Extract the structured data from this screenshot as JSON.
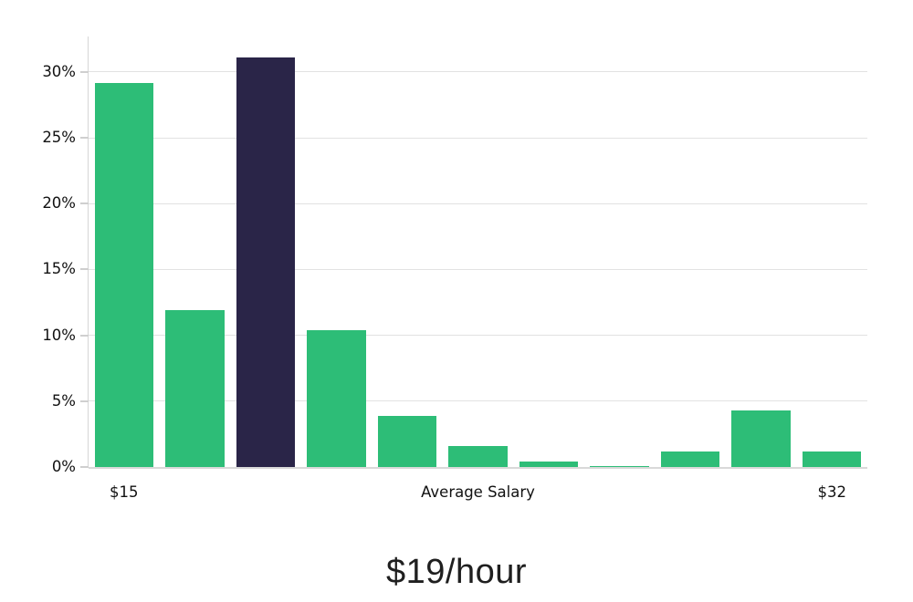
{
  "chart_data": {
    "type": "bar",
    "title": "$19/hour",
    "values": [
      29.2,
      11.9,
      31.1,
      10.4,
      3.9,
      1.6,
      0.45,
      0.1,
      1.15,
      4.3,
      1.15
    ],
    "highlighted_bar_index": 2,
    "y_ticks": [
      {
        "label": "0%",
        "value": 0
      },
      {
        "label": "5%",
        "value": 5
      },
      {
        "label": "10%",
        "value": 10
      },
      {
        "label": "15%",
        "value": 15
      },
      {
        "label": "20%",
        "value": 20
      },
      {
        "label": "25%",
        "value": 25
      },
      {
        "label": "30%",
        "value": 30
      }
    ],
    "x_tick_labels": [
      {
        "label": "$15",
        "bar_index": 0
      },
      {
        "label": "Average Salary",
        "bar_index": 5
      },
      {
        "label": "$32",
        "bar_index": 10
      }
    ],
    "ylim": [
      0,
      32.7
    ],
    "grid": "horizontal",
    "legend": "none",
    "colors": {
      "bar": "#2dbd77",
      "highlight": "#2a2548",
      "gridline": "#e2e2e2",
      "axis": "#d6d6d6",
      "tick_text": "#111111",
      "title_text": "#1f1f1f"
    }
  }
}
